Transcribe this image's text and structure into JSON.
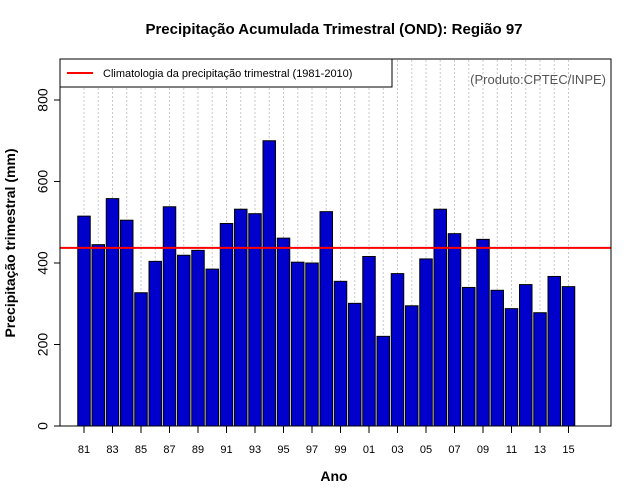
{
  "chart_data": {
    "type": "bar",
    "title": "Precipitação Acumulada Trimestral (OND): Região 97",
    "xlabel": "Ano",
    "ylabel": "Precipitação trimestral (mm)",
    "ylim": [
      0,
      900
    ],
    "yticks": [
      0,
      200,
      400,
      600,
      800
    ],
    "xticks": [
      "81",
      "83",
      "85",
      "87",
      "89",
      "91",
      "93",
      "95",
      "97",
      "99",
      "01",
      "03",
      "05",
      "07",
      "09",
      "11",
      "13",
      "15"
    ],
    "categories": [
      "1981",
      "1982",
      "1983",
      "1984",
      "1985",
      "1986",
      "1987",
      "1988",
      "1989",
      "1990",
      "1991",
      "1992",
      "1993",
      "1994",
      "1995",
      "1996",
      "1997",
      "1998",
      "1999",
      "2000",
      "2001",
      "2002",
      "2003",
      "2004",
      "2005",
      "2006",
      "2007",
      "2008",
      "2009",
      "2010",
      "2011",
      "2012",
      "2013",
      "2014",
      "2015"
    ],
    "values": [
      515,
      445,
      558,
      505,
      327,
      404,
      538,
      419,
      431,
      385,
      497,
      532,
      521,
      700,
      461,
      402,
      400,
      526,
      355,
      301,
      416,
      220,
      374,
      295,
      410,
      532,
      472,
      340,
      458,
      333,
      288,
      347,
      278,
      367,
      342
    ],
    "climatology": {
      "label": "Climatologia da precipitação trimestral (1981-2010)",
      "value": 437,
      "color": "#ff0000"
    },
    "bar_color": "#0000cd",
    "legend_position": "top-left",
    "credit": "(Produto:CPTEC/INPE)",
    "grid": "vertical-dotted"
  }
}
